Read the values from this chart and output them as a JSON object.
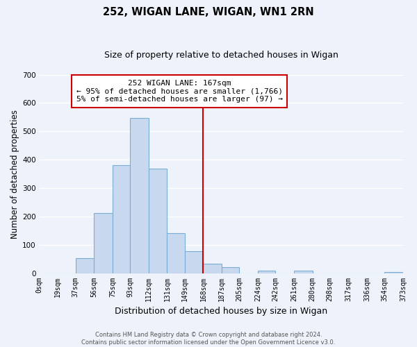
{
  "title": "252, WIGAN LANE, WIGAN, WN1 2RN",
  "subtitle": "Size of property relative to detached houses in Wigan",
  "xlabel": "Distribution of detached houses by size in Wigan",
  "ylabel": "Number of detached properties",
  "bin_labels": [
    "0sqm",
    "19sqm",
    "37sqm",
    "56sqm",
    "75sqm",
    "93sqm",
    "112sqm",
    "131sqm",
    "149sqm",
    "168sqm",
    "187sqm",
    "205sqm",
    "224sqm",
    "242sqm",
    "261sqm",
    "280sqm",
    "298sqm",
    "317sqm",
    "336sqm",
    "354sqm",
    "373sqm"
  ],
  "bin_edges": [
    0,
    19,
    37,
    56,
    75,
    93,
    112,
    131,
    149,
    168,
    187,
    205,
    224,
    242,
    261,
    280,
    298,
    317,
    336,
    354,
    373
  ],
  "bar_heights": [
    0,
    0,
    53,
    213,
    381,
    547,
    369,
    141,
    77,
    34,
    21,
    0,
    9,
    0,
    9,
    0,
    0,
    0,
    0,
    5
  ],
  "bar_color": "#c8d9ef",
  "bar_edge_color": "#7aadd4",
  "vline_x": 168,
  "vline_color": "#cc0000",
  "ylim": [
    0,
    700
  ],
  "yticks": [
    0,
    100,
    200,
    300,
    400,
    500,
    600,
    700
  ],
  "annotation_title": "252 WIGAN LANE: 167sqm",
  "annotation_line1": "← 95% of detached houses are smaller (1,766)",
  "annotation_line2": "5% of semi-detached houses are larger (97) →",
  "footer1": "Contains HM Land Registry data © Crown copyright and database right 2024.",
  "footer2": "Contains public sector information licensed under the Open Government Licence v3.0.",
  "title_fontsize": 10.5,
  "subtitle_fontsize": 9,
  "axis_label_fontsize": 8.5,
  "tick_fontsize": 7,
  "annotation_fontsize": 8,
  "footer_fontsize": 6,
  "bg_color": "#eef2fb",
  "grid_color": "#ffffff"
}
